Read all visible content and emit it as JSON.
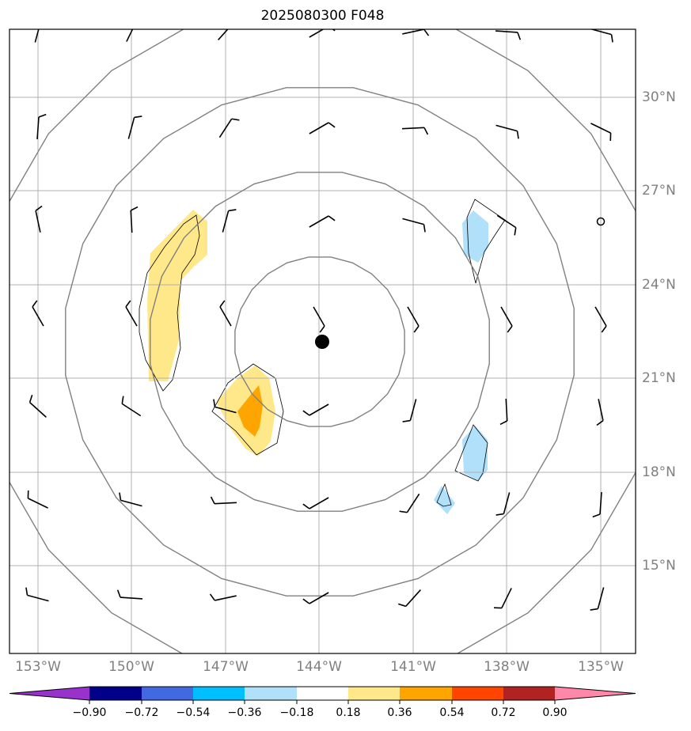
{
  "title": "2025080300 F048",
  "lon_ticks": [
    "153°W",
    "150°W",
    "147°W",
    "144°W",
    "141°W",
    "138°W",
    "135°W"
  ],
  "lat_ticks": [
    "30°N",
    "27°N",
    "24°N",
    "21°N",
    "18°N",
    "15°N"
  ],
  "colorbar": {
    "labels": [
      "−0.90",
      "−0.72",
      "−0.54",
      "−0.36",
      "−0.18",
      "0.18",
      "0.36",
      "0.54",
      "0.72",
      "0.90"
    ],
    "colors": [
      "#9932cc",
      "#00008b",
      "#4169e1",
      "#00bfff",
      "#b0e0fa",
      "#ffffff",
      "#ffe88a",
      "#ffa500",
      "#ff4500",
      "#b22222",
      "#ff88aa"
    ]
  },
  "chart_data": {
    "type": "map",
    "projection": "plate-carree",
    "lon_range": [
      -154,
      -133.9
    ],
    "lat_range": [
      12.3,
      32.3
    ],
    "center_marker": {
      "lon": -144.1,
      "lat": 22.2
    },
    "open_circle_marker": {
      "lon": -135.0,
      "lat": 26.0
    },
    "range_rings_deg": [
      2.7,
      5.4,
      8.1,
      10.9
    ],
    "grid": true,
    "shaded_fields": [
      {
        "name": "yellow band west",
        "level": "0.18-0.36"
      },
      {
        "name": "yellow/orange blob",
        "level": "0.18-0.54"
      },
      {
        "name": "light blue north-east",
        "level": "-0.36 - -0.18"
      },
      {
        "name": "light blue south-east",
        "level": "-0.36 - -0.18"
      }
    ]
  }
}
